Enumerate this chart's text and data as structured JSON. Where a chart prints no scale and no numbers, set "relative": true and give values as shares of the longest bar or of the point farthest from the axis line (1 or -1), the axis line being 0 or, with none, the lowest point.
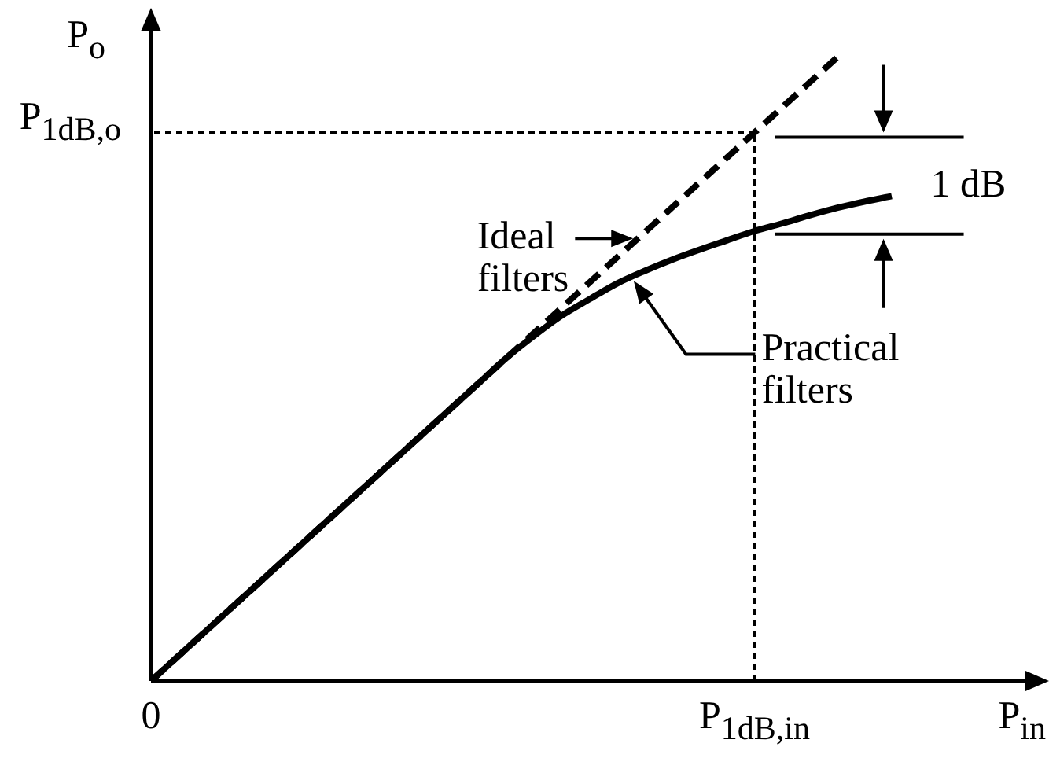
{
  "chart_data": {
    "type": "line",
    "relative": true,
    "xlabel": "P$_{in}$",
    "ylabel": "P$_{o}$",
    "categories": [
      "0",
      null,
      null,
      null,
      null,
      null,
      null,
      null,
      null,
      null,
      null,
      null,
      null,
      null,
      null,
      null,
      null,
      null,
      null,
      null,
      null,
      null,
      "P$_{1dB,in}$",
      null,
      null,
      null,
      null,
      null
    ],
    "series": [
      {
        "name": "Ideal filters",
        "color": "#000000",
        "line_style": "dashed",
        "values": [
          0,
          0.04,
          0.08,
          0.12,
          0.16,
          0.2,
          0.24,
          0.28,
          0.32,
          0.36,
          0.4,
          0.44,
          0.48,
          0.52,
          0.56,
          0.6,
          0.64,
          0.68,
          0.72,
          0.76,
          0.8,
          0.84,
          0.88,
          0.92,
          0.96,
          1,
          null,
          null
        ]
      },
      {
        "name": "Practical filters",
        "color": "#000000",
        "line_style": "solid",
        "values": [
          0,
          0.04,
          0.08,
          0.12,
          0.16,
          0.2,
          0.24,
          0.28,
          0.32,
          0.36,
          0.4,
          0.44,
          0.48,
          0.52,
          0.555,
          0.587,
          0.613,
          0.638,
          0.658,
          0.676,
          0.692,
          0.707,
          0.722,
          0.734,
          0.747,
          0.759,
          0.769,
          0.778
        ]
      }
    ],
    "ref_lines": [
      {
        "axis": "x",
        "value": "P$_{1dB,in}$",
        "line_style": "dotted"
      },
      {
        "axis": "y",
        "value": 0.88,
        "label": "P$_{1dB,o}$",
        "line_style": "dotted"
      }
    ],
    "annotations": [
      "1 dB"
    ]
  }
}
